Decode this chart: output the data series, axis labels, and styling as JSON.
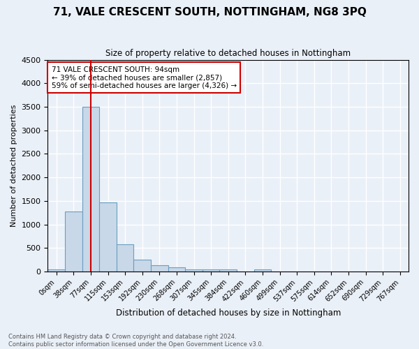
{
  "title": "71, VALE CRESCENT SOUTH, NOTTINGHAM, NG8 3PQ",
  "subtitle": "Size of property relative to detached houses in Nottingham",
  "xlabel": "Distribution of detached houses by size in Nottingham",
  "ylabel": "Number of detached properties",
  "bin_labels": [
    "0sqm",
    "38sqm",
    "77sqm",
    "115sqm",
    "153sqm",
    "192sqm",
    "230sqm",
    "268sqm",
    "307sqm",
    "345sqm",
    "384sqm",
    "422sqm",
    "460sqm",
    "499sqm",
    "537sqm",
    "575sqm",
    "614sqm",
    "652sqm",
    "690sqm",
    "729sqm",
    "767sqm"
  ],
  "bar_heights": [
    50,
    1280,
    3500,
    1470,
    580,
    250,
    130,
    85,
    50,
    40,
    40,
    0,
    50,
    0,
    0,
    0,
    0,
    0,
    0,
    0,
    0
  ],
  "bar_color": "#c8d8e8",
  "bar_edge_color": "#6a9ec0",
  "vline_x": 2.0,
  "vline_color": "#cc0000",
  "ylim": [
    0,
    4500
  ],
  "yticks": [
    0,
    500,
    1000,
    1500,
    2000,
    2500,
    3000,
    3500,
    4000,
    4500
  ],
  "annotation_text": "71 VALE CRESCENT SOUTH: 94sqm\n← 39% of detached houses are smaller (2,857)\n59% of semi-detached houses are larger (4,326) →",
  "annotation_box_color": "#ffffff",
  "annotation_box_edge": "#cc0000",
  "footer_text": "Contains HM Land Registry data © Crown copyright and database right 2024.\nContains public sector information licensed under the Open Government Licence v3.0.",
  "bg_color": "#eaf0f8",
  "plot_bg_color": "#eaf0f8",
  "grid_color": "#ffffff"
}
